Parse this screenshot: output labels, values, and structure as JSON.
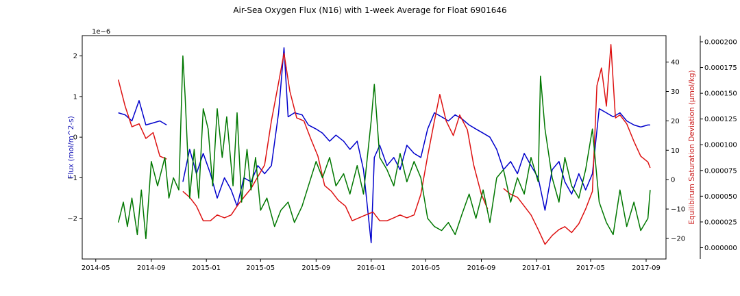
{
  "chart_data": {
    "type": "line",
    "title": "Air-Sea Oxygen Flux (N16) with 1-week Average for Float 6901646",
    "x_ticks": [
      "2014-05",
      "2014-09",
      "2015-01",
      "2015-05",
      "2015-09",
      "2016-01",
      "2016-05",
      "2016-09",
      "2017-01",
      "2017-05",
      "2017-09"
    ],
    "axes": {
      "left": {
        "label": "Flux (mol/m^2-s)",
        "offset_text": "1e−6",
        "ticks": [
          "2",
          "1",
          "0",
          "−1",
          "−2"
        ],
        "range": [
          -3.0,
          2.5
        ],
        "color": "#1a1ab8"
      },
      "right": {
        "label": "Equilibirum Saturation Deviation (μmol/kg)",
        "ticks": [
          "40",
          "30",
          "20",
          "10",
          "0",
          "−10",
          "−20"
        ],
        "range": [
          -27,
          49
        ],
        "color": "#cc1f1f"
      },
      "outer": {
        "ticks": [
          "0.000200",
          "0.000175",
          "0.000150",
          "0.000125",
          "0.000100",
          "0.000075",
          "0.000050",
          "0.000025",
          "0.000000"
        ],
        "range": [
          -1.1e-05,
          0.000206
        ],
        "color": "#000000"
      }
    },
    "series": [
      {
        "color": "#0000cc",
        "axis": "left",
        "x": [
          "2014-06-20",
          "2014-07-05",
          "2014-07-20",
          "2014-08-05",
          "2014-08-20",
          "2014-09-05",
          "2014-09-20",
          "2014-10-05",
          "2014-10-20",
          "2014-11-10",
          "2014-11-25",
          "2014-12-10",
          "2014-12-25",
          "2015-01-10",
          "2015-01-25",
          "2015-02-10",
          "2015-02-25",
          "2015-03-10",
          "2015-03-25",
          "2015-04-10",
          "2015-04-25",
          "2015-05-10",
          "2015-05-25",
          "2015-06-10",
          "2015-06-22",
          "2015-07-01",
          "2015-07-15",
          "2015-08-01",
          "2015-08-15",
          "2015-09-01",
          "2015-09-15",
          "2015-10-01",
          "2015-10-15",
          "2015-11-01",
          "2015-11-15",
          "2015-12-01",
          "2015-12-15",
          "2016-01-01",
          "2016-01-08",
          "2016-01-20",
          "2016-02-05",
          "2016-02-20",
          "2016-03-05",
          "2016-03-20",
          "2016-04-05",
          "2016-04-20",
          "2016-05-05",
          "2016-05-20",
          "2016-06-05",
          "2016-06-20",
          "2016-07-05",
          "2016-07-20",
          "2016-08-05",
          "2016-08-20",
          "2016-09-05",
          "2016-09-20",
          "2016-10-05",
          "2016-10-20",
          "2016-11-05",
          "2016-11-20",
          "2016-12-05",
          "2016-12-20",
          "2017-01-05",
          "2017-01-20",
          "2017-02-05",
          "2017-02-20",
          "2017-03-05",
          "2017-03-20",
          "2017-04-05",
          "2017-04-20",
          "2017-05-05",
          "2017-05-20",
          "2017-06-05",
          "2017-06-20",
          "2017-07-05",
          "2017-07-20",
          "2017-08-05",
          "2017-08-20",
          "2017-09-05",
          "2017-09-10"
        ],
        "y": [
          0.6,
          0.55,
          0.4,
          0.9,
          0.3,
          0.35,
          0.4,
          0.3,
          null,
          -1.1,
          -0.3,
          -0.9,
          -0.4,
          -0.9,
          -1.5,
          -1.0,
          -1.3,
          -1.7,
          -1.0,
          -1.1,
          -0.7,
          -0.9,
          -0.7,
          0.6,
          2.2,
          0.5,
          0.6,
          0.55,
          0.3,
          0.2,
          0.1,
          -0.1,
          0.05,
          -0.1,
          -0.3,
          -0.1,
          -0.8,
          -2.6,
          -0.5,
          -0.2,
          -0.7,
          -0.5,
          -0.8,
          -0.2,
          -0.4,
          -0.5,
          0.2,
          0.6,
          0.5,
          0.4,
          0.55,
          0.45,
          0.3,
          0.2,
          0.1,
          0.0,
          -0.3,
          -0.8,
          -0.6,
          -0.9,
          -0.4,
          -0.7,
          -1.0,
          -1.8,
          -0.8,
          -0.6,
          -1.1,
          -1.4,
          -0.9,
          -1.3,
          -0.9,
          0.7,
          0.6,
          0.5,
          0.6,
          0.4,
          0.3,
          0.25,
          0.3,
          0.3
        ]
      },
      {
        "color": "#dd1111",
        "axis": "right",
        "x": [
          "2014-06-20",
          "2014-07-05",
          "2014-07-20",
          "2014-08-05",
          "2014-08-20",
          "2014-09-05",
          "2014-09-20",
          "2014-10-05",
          "2014-10-20",
          "2014-11-10",
          "2014-11-25",
          "2014-12-10",
          "2014-12-25",
          "2015-01-10",
          "2015-01-25",
          "2015-02-10",
          "2015-02-25",
          "2015-03-10",
          "2015-03-25",
          "2015-04-10",
          "2015-04-25",
          "2015-05-10",
          "2015-05-25",
          "2015-06-10",
          "2015-06-22",
          "2015-07-05",
          "2015-07-20",
          "2015-08-05",
          "2015-08-20",
          "2015-09-05",
          "2015-09-20",
          "2015-10-05",
          "2015-10-20",
          "2015-11-05",
          "2015-11-20",
          "2015-12-05",
          "2015-12-20",
          "2016-01-05",
          "2016-01-20",
          "2016-02-05",
          "2016-02-20",
          "2016-03-05",
          "2016-03-20",
          "2016-04-05",
          "2016-04-20",
          "2016-05-05",
          "2016-05-20",
          "2016-06-01",
          "2016-06-15",
          "2016-07-01",
          "2016-07-15",
          "2016-08-01",
          "2016-08-15",
          "2016-09-01",
          "2016-09-15",
          "2016-10-01",
          "2016-10-20",
          "2016-11-05",
          "2016-11-20",
          "2016-12-05",
          "2016-12-20",
          "2017-01-05",
          "2017-01-20",
          "2017-02-05",
          "2017-02-20",
          "2017-03-05",
          "2017-03-20",
          "2017-04-05",
          "2017-04-20",
          "2017-05-05",
          "2017-05-15",
          "2017-05-25",
          "2017-06-05",
          "2017-06-15",
          "2017-06-25",
          "2017-07-05",
          "2017-07-20",
          "2017-08-05",
          "2017-08-20",
          "2017-09-05",
          "2017-09-10"
        ],
        "y": [
          34,
          25,
          18,
          19,
          14,
          16,
          8,
          7,
          null,
          -4,
          -6,
          -9,
          -14,
          -14,
          -12,
          -13,
          -12,
          -9,
          -6,
          -3,
          1,
          5,
          20,
          33,
          43,
          30,
          21,
          20,
          14,
          8,
          -2,
          -4,
          -7,
          -9,
          -14,
          -13,
          -12,
          -11,
          -14,
          -14,
          -13,
          -12,
          -13,
          -12,
          -5,
          8,
          20,
          29,
          20,
          15,
          22,
          17,
          5,
          -5,
          -10,
          null,
          -3,
          -5,
          -6,
          -9,
          -12,
          -17,
          -22,
          -19,
          -17,
          -16,
          -18,
          -15,
          -10,
          -4,
          32,
          38,
          25,
          46,
          21,
          22,
          19,
          13,
          8,
          6,
          4
        ]
      },
      {
        "color": "#007700",
        "axis": "left",
        "x": [
          "2014-06-20",
          "2014-07-01",
          "2014-07-10",
          "2014-07-20",
          "2014-08-01",
          "2014-08-10",
          "2014-08-20",
          "2014-09-01",
          "2014-09-15",
          "2014-10-01",
          "2014-10-10",
          "2014-10-20",
          "2014-11-01",
          "2014-11-10",
          "2014-11-15",
          "2014-11-25",
          "2014-12-05",
          "2014-12-15",
          "2014-12-25",
          "2015-01-05",
          "2015-01-15",
          "2015-01-25",
          "2015-02-05",
          "2015-02-15",
          "2015-03-01",
          "2015-03-10",
          "2015-03-20",
          "2015-04-01",
          "2015-04-10",
          "2015-04-20",
          "2015-05-01",
          "2015-05-15",
          "2015-06-01",
          "2015-06-15",
          "2015-07-01",
          "2015-07-15",
          "2015-08-01",
          "2015-08-15",
          "2015-09-01",
          "2015-09-15",
          "2015-10-01",
          "2015-10-15",
          "2015-11-01",
          "2015-11-15",
          "2015-12-01",
          "2015-12-15",
          "2016-01-01",
          "2016-01-08",
          "2016-01-20",
          "2016-02-05",
          "2016-02-20",
          "2016-03-05",
          "2016-03-20",
          "2016-04-05",
          "2016-04-20",
          "2016-05-05",
          "2016-05-20",
          "2016-06-05",
          "2016-06-20",
          "2016-07-05",
          "2016-07-20",
          "2016-08-05",
          "2016-08-20",
          "2016-09-05",
          "2016-09-20",
          "2016-10-05",
          "2016-10-20",
          "2016-11-05",
          "2016-11-20",
          "2016-12-05",
          "2016-12-20",
          "2017-01-05",
          "2017-01-10",
          "2017-01-20",
          "2017-02-05",
          "2017-02-20",
          "2017-03-05",
          "2017-03-20",
          "2017-04-05",
          "2017-04-20",
          "2017-05-05",
          "2017-05-20",
          "2017-06-05",
          "2017-06-20",
          "2017-07-05",
          "2017-07-20",
          "2017-08-05",
          "2017-08-20",
          "2017-09-05",
          "2017-09-10"
        ],
        "y": [
          -2.1,
          -1.6,
          -2.2,
          -1.5,
          -2.4,
          -1.3,
          -2.5,
          -0.6,
          -1.2,
          -0.5,
          -1.5,
          -1.0,
          -1.3,
          2.0,
          1.0,
          -1.5,
          -0.3,
          -1.5,
          0.7,
          0.2,
          -1.2,
          0.7,
          -0.5,
          0.5,
          -1.2,
          0.6,
          -1.6,
          -0.3,
          -1.3,
          -0.5,
          -1.8,
          -1.5,
          -2.2,
          -1.8,
          -1.6,
          -2.1,
          -1.7,
          -1.2,
          -0.6,
          -1.0,
          -0.5,
          -1.2,
          -0.9,
          -1.4,
          -0.7,
          -1.4,
          0.4,
          1.3,
          -0.5,
          -0.8,
          -1.2,
          -0.4,
          -1.1,
          -0.6,
          -1.0,
          -2.0,
          -2.2,
          -2.3,
          -2.1,
          -2.4,
          -1.9,
          -1.4,
          -2.0,
          -1.3,
          -2.1,
          -1.0,
          -0.8,
          -1.6,
          -1.0,
          -1.4,
          -0.5,
          -1.1,
          1.5,
          0.2,
          -1.0,
          -1.6,
          -0.5,
          -1.2,
          -1.5,
          -0.8,
          0.2,
          -1.6,
          -2.1,
          -2.4,
          -1.3,
          -2.2,
          -1.6,
          -2.3,
          -2.0,
          -1.3
        ]
      }
    ]
  }
}
